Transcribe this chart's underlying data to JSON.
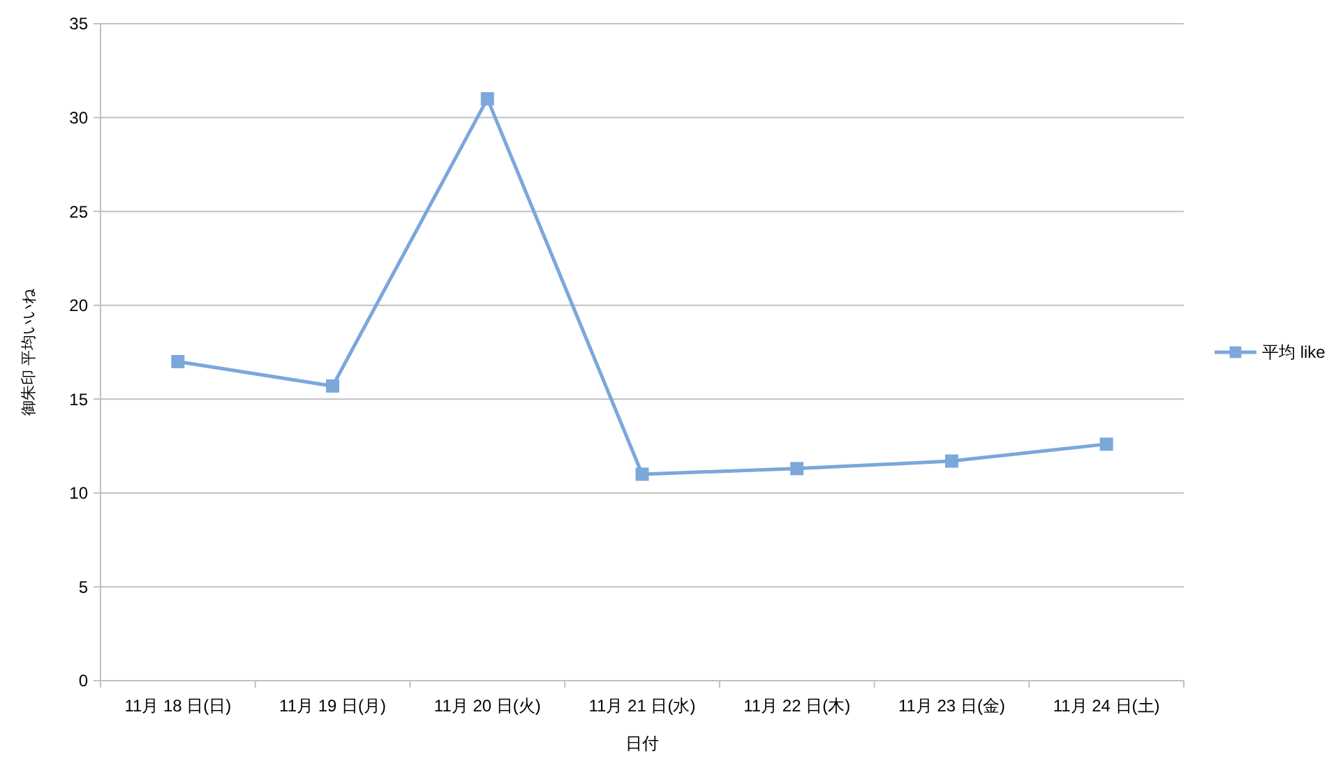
{
  "chart_data": {
    "type": "line",
    "xlabel": "日付",
    "ylabel": "御朱印 平均いいね",
    "categories": [
      "11月 18 日(日)",
      "11月 19 日(月)",
      "11月 20 日(火)",
      "11月 21 日(水)",
      "11月 22 日(木)",
      "11月 23 日(金)",
      "11月 24 日(土)"
    ],
    "series": [
      {
        "name": "平均 like",
        "color": "#7ba7db",
        "values": [
          17,
          15.7,
          31,
          11,
          11.3,
          11.7,
          12.6
        ]
      }
    ],
    "ylim": [
      0,
      35
    ],
    "yticks": [
      0,
      5,
      10,
      15,
      20,
      25,
      30,
      35
    ],
    "grid": "y",
    "legend": "right",
    "marker": "square",
    "line_style": "solid"
  }
}
